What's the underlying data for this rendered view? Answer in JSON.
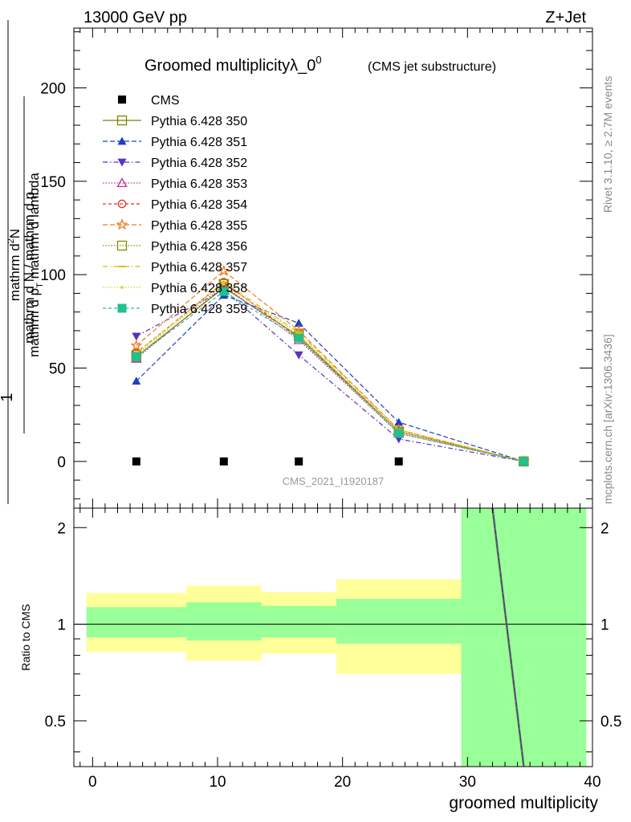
{
  "header": {
    "left": "13000 GeV pp",
    "right": "Z+Jet"
  },
  "side_labels": {
    "rivet": "Rivet 3.1.10, ≥ 2.7M events",
    "mcplots": "mcplots.cern.ch [arXiv:1306.3436]"
  },
  "watermark": "CMS_2021_I1920187",
  "chart_data": [
    {
      "type": "line",
      "panel": "main",
      "title": "Groomed multiplicityλ_0",
      "title_superscript": "0",
      "subtitle": "(CMS jet substructure)",
      "ylabel": {
        "prefix": "1",
        "denominator": "mathrm d N / mathrm d p",
        "denominator_sub": "T",
        "numerator_main": "mathrm d",
        "numerator_super": "2",
        "numerator_N": "N",
        "lower_main": "mathrm d p",
        "lower_sub": "T",
        "lower_rest": " mathrm d lambda"
      },
      "xlim": [
        -1.5,
        40
      ],
      "ylim": [
        -25,
        232
      ],
      "yticks": [
        "0",
        "50",
        "100",
        "150",
        "200"
      ],
      "grid": false,
      "legend_position": "top-left",
      "x": [
        3.5,
        10.5,
        16.5,
        24.5,
        34.5
      ],
      "data_series": {
        "name": "CMS",
        "color": "#000000",
        "marker": "filled-square",
        "values": [
          0,
          0,
          0,
          0,
          0
        ]
      },
      "series": [
        {
          "name": "Pythia 6.428 350",
          "color": "#808000",
          "dash": "solid",
          "marker": "open-square",
          "values": [
            56,
            93,
            67,
            16,
            0
          ]
        },
        {
          "name": "Pythia 6.428 351",
          "color": "#1f3fbf",
          "dash": "6,3",
          "marker": "filled-triangle-up",
          "values": [
            43,
            89,
            74,
            21,
            0
          ]
        },
        {
          "name": "Pythia 6.428 352",
          "color": "#5b2fbf",
          "dash": "6,3,1.5,3",
          "marker": "filled-triangle-down",
          "values": [
            67,
            92,
            57,
            12,
            0
          ]
        },
        {
          "name": "Pythia 6.428 353",
          "color": "#c0308f",
          "dash": "1.5,2",
          "marker": "open-triangle-up",
          "values": [
            55,
            94,
            65,
            15,
            0
          ]
        },
        {
          "name": "Pythia 6.428 354",
          "color": "#e03030",
          "dash": "4,3",
          "marker": "open-circle",
          "values": [
            58,
            96,
            66,
            16,
            0
          ]
        },
        {
          "name": "Pythia 6.428 355",
          "color": "#f07a20",
          "dash": "6,3",
          "marker": "open-star",
          "values": [
            62,
            102,
            70,
            17,
            0
          ]
        },
        {
          "name": "Pythia 6.428 356",
          "color": "#8a8a00",
          "dash": "1.5,2",
          "marker": "open-square",
          "values": [
            57,
            95,
            68,
            16,
            0
          ]
        },
        {
          "name": "Pythia 6.428 357",
          "color": "#d8c000",
          "dash": "6,3,1.5,3",
          "marker": "dash",
          "values": [
            58,
            96,
            69,
            17,
            0
          ]
        },
        {
          "name": "Pythia 6.428 358",
          "color": "#c8e020",
          "dash": "1.5,2",
          "marker": "dot",
          "values": [
            57,
            95,
            68,
            16,
            0
          ]
        },
        {
          "name": "Pythia 6.428 359",
          "color": "#20c090",
          "dash": "4,3",
          "marker": "filled-square",
          "values": [
            56,
            91,
            66,
            15,
            0
          ]
        }
      ]
    },
    {
      "type": "area",
      "panel": "ratio",
      "ylabel": "Ratio to CMS",
      "xlabel": "groomed multiplicity",
      "xlim": [
        -1.5,
        40
      ],
      "ylim": [
        0.36,
        2.3
      ],
      "yticks": [
        "0.5",
        "1",
        "2"
      ],
      "xticks": [
        "0",
        "10",
        "20",
        "30",
        "40"
      ],
      "reference_line": 1,
      "bins": [
        {
          "x0": -0.5,
          "x1": 7.5,
          "inner": [
            0.91,
            1.13
          ],
          "outer": [
            0.82,
            1.25
          ]
        },
        {
          "x0": 7.5,
          "x1": 13.5,
          "inner": [
            0.89,
            1.17
          ],
          "outer": [
            0.77,
            1.32
          ]
        },
        {
          "x0": 13.5,
          "x1": 19.5,
          "inner": [
            0.91,
            1.14
          ],
          "outer": [
            0.81,
            1.26
          ]
        },
        {
          "x0": 19.5,
          "x1": 29.5,
          "inner": [
            0.87,
            1.2
          ],
          "outer": [
            0.7,
            1.38
          ]
        },
        {
          "x0": 29.5,
          "x1": 39.5,
          "inner": [
            0.36,
            2.3
          ],
          "outer": [
            0.36,
            2.3
          ]
        }
      ],
      "ratio_line": {
        "x": [
          32.0,
          34.5
        ],
        "y": [
          2.3,
          0.36
        ],
        "color": "#606060"
      }
    }
  ]
}
